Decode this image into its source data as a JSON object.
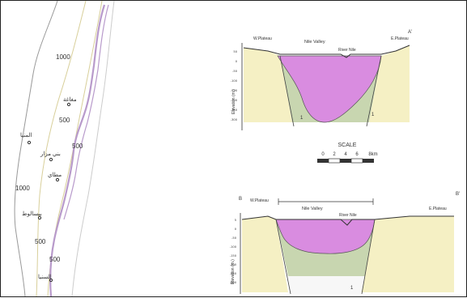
{
  "map": {
    "contours": [
      "1000",
      "500",
      "500",
      "1000",
      "500",
      "500"
    ],
    "places": [
      "مغاغة",
      "المنيا",
      "بني مزار",
      "مطاي",
      "بيسالوط",
      "السنيا"
    ]
  },
  "section_a": {
    "left_plateau": "W.Plateau",
    "right_plateau": "E.Plateau",
    "valley": "Nile Valley",
    "river": "River Nile",
    "end_label": "A'",
    "y_axis": "Elevation (m.)",
    "ticks": [
      "50",
      "0",
      "-50",
      "-100",
      "-150",
      "-200",
      "-250",
      "-300"
    ],
    "marker_left": "1",
    "marker_right": "1"
  },
  "scale": {
    "title": "SCALE",
    "ticks": [
      "0",
      "2",
      "4",
      "6",
      "8km"
    ]
  },
  "section_b": {
    "start_label": "B",
    "end_label": "B'",
    "left_plateau": "W.Plateau",
    "right_plateau": "E.Plateau",
    "valley": "Nile Valley",
    "river": "River Nile",
    "y_axis": "Elevation (m.)",
    "ticks": [
      "5",
      "0",
      "-50",
      "-100",
      "-150",
      "-200",
      "-250",
      "-300"
    ],
    "marker": "1"
  },
  "colors": {
    "purple": "#d98ce0",
    "green": "#c8d6b0",
    "yellow": "#f5f0c4",
    "map_line": "#b89acb"
  }
}
